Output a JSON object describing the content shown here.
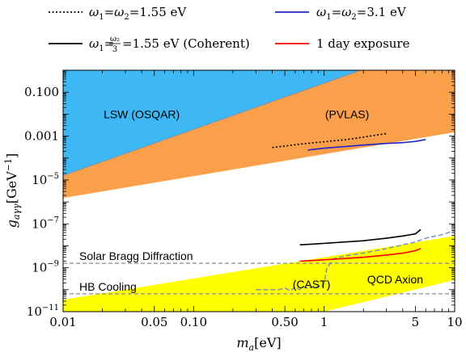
{
  "chart_data": {
    "type": "line",
    "x_scale": "log",
    "y_scale": "log",
    "xlim": [
      0.01,
      10
    ],
    "ylim": [
      1e-11,
      1
    ],
    "grid": false,
    "legend_position": "top",
    "axes": {
      "xlabel_main": "m",
      "xlabel_sub": "a",
      "xlabel_unit": "[eV]",
      "ylabel_main": "g",
      "ylabel_sub": "aγγ",
      "ylabel_unit": "[GeV",
      "ylabel_exp": "−1",
      "ylabel_close": "]"
    },
    "xticks": [
      {
        "v": 0.01,
        "label": "0.01"
      },
      {
        "v": 0.05,
        "label": "0.05"
      },
      {
        "v": 0.1,
        "label": "0.10"
      },
      {
        "v": 0.5,
        "label": "0.50"
      },
      {
        "v": 1,
        "label": "1"
      },
      {
        "v": 5,
        "label": "5"
      },
      {
        "v": 10,
        "label": "10"
      }
    ],
    "yticks": [
      {
        "v": 0.1,
        "label": "0.100",
        "type": "plain"
      },
      {
        "v": 0.001,
        "label": "0.001",
        "type": "plain"
      },
      {
        "v": 1e-05,
        "base": "10",
        "exp": "−5",
        "type": "pow"
      },
      {
        "v": 1e-07,
        "base": "10",
        "exp": "−7",
        "type": "pow"
      },
      {
        "v": 1e-09,
        "base": "10",
        "exp": "−9",
        "type": "pow"
      },
      {
        "v": 1e-11,
        "base": "10",
        "exp": "−11",
        "type": "pow"
      }
    ],
    "regions": [
      {
        "label": "LSW (OSQAR)",
        "color": "#3db8f5",
        "label_at": [
          0.04,
          0.01
        ],
        "polygon": [
          [
            0.01,
            1
          ],
          [
            1.9,
            1
          ],
          [
            0.01,
            1.6e-05
          ]
        ]
      },
      {
        "label": "(PVLAS)",
        "color": "#fba04a",
        "label_at": [
          1.5,
          0.01
        ],
        "polygon": [
          [
            0.01,
            1.6e-05
          ],
          [
            1.9,
            1
          ],
          [
            10,
            1
          ],
          [
            10,
            0.0015
          ],
          [
            0.01,
            1.5e-06
          ]
        ]
      },
      {
        "label": "QCD Axion",
        "color": "#ffff00",
        "label_at": [
          3.5,
          3e-10
        ],
        "polygon": [
          [
            0.01,
            3.5e-11
          ],
          [
            10,
            2.8e-08
          ],
          [
            10,
            2.8e-10
          ],
          [
            1,
            1e-11
          ],
          [
            0.01,
            1e-11
          ]
        ]
      }
    ],
    "reference_lines": [
      {
        "label": "Solar Bragg Diffraction",
        "y": 1.6e-09,
        "color": "#888888"
      },
      {
        "label": "HB Cooling",
        "y": 6.5e-11,
        "color": "#888888"
      }
    ],
    "cast": {
      "label": "(CAST)",
      "color": "#6f8ebd",
      "x": [
        0.3,
        0.45,
        0.5,
        0.55,
        0.6,
        0.65,
        0.7,
        0.75,
        0.8,
        0.85,
        0.9,
        0.95,
        1.0,
        1.05,
        1.2,
        1.5,
        2.0,
        3.0,
        4.0,
        5.0,
        6.0,
        8.0,
        10.0
      ],
      "y": [
        1e-10,
        1e-10,
        1.2e-10,
        9e-11,
        1.3e-10,
        1e-10,
        1.4e-10,
        1.1e-10,
        1.4e-10,
        1.2e-10,
        1.5e-10,
        1.3e-10,
        2e-10,
        1e-09,
        2.7e-09,
        3.6e-09,
        4.6e-09,
        7.5e-09,
        1.1e-08,
        1.5e-08,
        2.2e-08,
        3.2e-08,
        5e-08
      ]
    },
    "series": [
      {
        "name": "ω₁=ω₂=1.55 eV",
        "color": "#000000",
        "style": "dotted",
        "x": [
          0.4,
          0.7,
          1.0,
          1.5,
          2.0,
          3.0
        ],
        "y": [
          0.0003,
          0.00045,
          0.00055,
          0.0007,
          0.0009,
          0.0013
        ]
      },
      {
        "name": "ω₁=ω₂=3.1 eV",
        "color": "#2222cc",
        "style": "solid",
        "x": [
          0.75,
          1.0,
          1.5,
          2.0,
          3.0,
          4.0,
          5.0,
          6.0
        ],
        "y": [
          0.00023,
          0.00028,
          0.00034,
          0.00039,
          0.00046,
          0.0005,
          0.00057,
          0.0007
        ]
      },
      {
        "name": "ω₁=ω₂/3=1.55 eV (Coherent)",
        "color": "#000000",
        "style": "solid",
        "x": [
          0.65,
          1.0,
          2.0,
          3.0,
          4.0,
          5.0,
          5.5
        ],
        "y": [
          1.1e-08,
          1.3e-08,
          1.7e-08,
          2.2e-08,
          2.8e-08,
          3.5e-08,
          5.5e-08
        ]
      },
      {
        "name": "1 day exposure",
        "color": "#ff0000",
        "style": "solid",
        "x": [
          0.65,
          1.0,
          2.0,
          3.0,
          4.0,
          5.0,
          5.5
        ],
        "y": [
          2e-09,
          2.3e-09,
          3e-09,
          3.8e-09,
          4.6e-09,
          6e-09,
          7.5e-09
        ]
      }
    ]
  },
  "legend": {
    "entry1": {
      "pre": "ω",
      "sub1": "1",
      "eq": "=ω",
      "sub2": "2",
      "post": "=1.55 eV"
    },
    "entry2": {
      "pre": "ω",
      "sub1": "1",
      "eq": "=ω",
      "sub2": "2",
      "post": "=3.1 eV"
    },
    "entry3": {
      "pre": "ω",
      "sub1": "1",
      "eq": "=",
      "frac_num": "ω₂",
      "frac_den": "3",
      "post": "=1.55 eV (Coherent)"
    },
    "entry4": {
      "text": "1 day exposure"
    }
  }
}
